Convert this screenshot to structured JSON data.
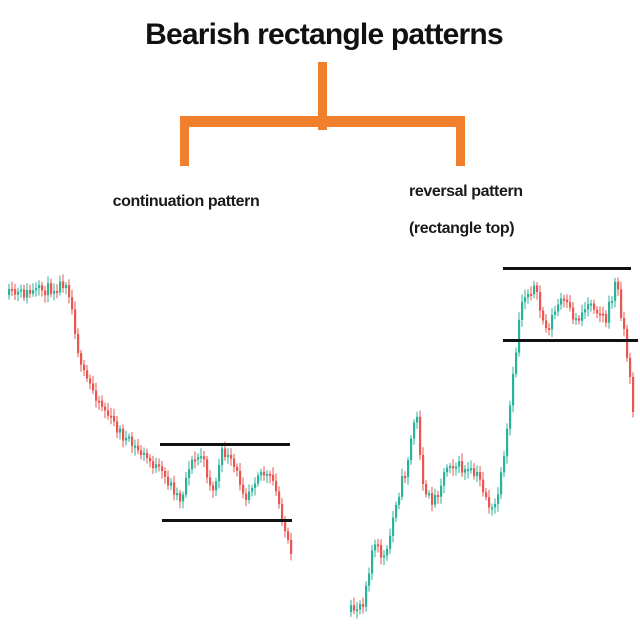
{
  "title": "Bearish rectangle patterns",
  "branches": {
    "left": {
      "label": "continuation pattern"
    },
    "right": {
      "label_line1": "reversal pattern",
      "label_line2": "(rectangle top)"
    }
  },
  "colors": {
    "bracket": "#F07F2E",
    "bullish_candle": "#2BB39A",
    "bearish_candle": "#E8564F",
    "pattern_line": "#111111",
    "background": "#FFFFFF"
  }
}
